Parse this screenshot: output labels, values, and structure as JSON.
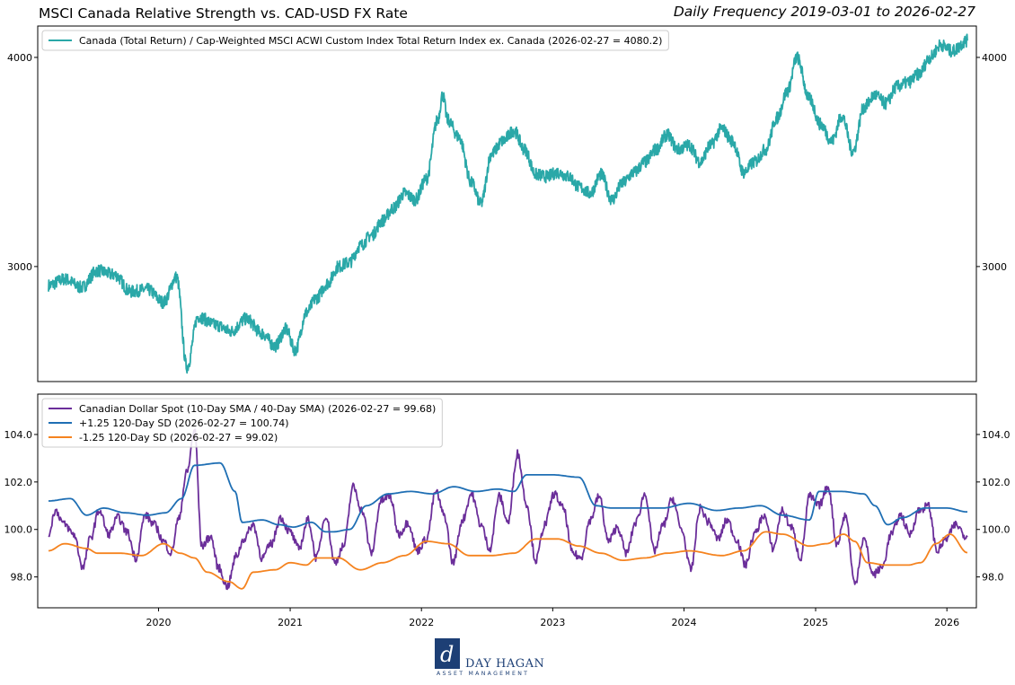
{
  "header": {
    "title": "MSCI Canada Relative Strength vs. CAD-USD FX Rate",
    "subtitle": "Daily Frequency 2019-03-01 to 2026-02-27"
  },
  "logo": {
    "text": "DAY HAGAN",
    "tagline": "ASSET MANAGEMENT",
    "color": "#1d3f75"
  },
  "chart_data": [
    {
      "type": "line",
      "title": "",
      "ylim": [
        2450,
        4150
      ],
      "yticks": [
        "3000",
        "4000"
      ],
      "y_tick_values": [
        3000,
        4000
      ],
      "grid": false,
      "legend_position": "top-left",
      "series": [
        {
          "name": "Canada (Total Return) / Cap-Weighted MSCI ACWI Custom Index Total Return Index ex. Canada (2026-02-27 = 4080.2)",
          "color": "#2aa8a8",
          "x": [
            "2019-03-01",
            "2019-04-15",
            "2019-06-01",
            "2019-07-15",
            "2019-09-01",
            "2019-10-15",
            "2019-12-01",
            "2020-01-15",
            "2020-02-20",
            "2020-03-20",
            "2020-04-20",
            "2020-06-10",
            "2020-07-20",
            "2020-09-01",
            "2020-10-15",
            "2020-11-20",
            "2020-12-20",
            "2021-01-15",
            "2021-02-15",
            "2021-03-15",
            "2021-04-15",
            "2021-05-15",
            "2021-06-15",
            "2021-07-15",
            "2021-08-15",
            "2021-09-15",
            "2021-10-15",
            "2021-11-15",
            "2021-12-15",
            "2022-01-15",
            "2022-02-15",
            "2022-03-01",
            "2022-03-15",
            "2022-04-15",
            "2022-05-20",
            "2022-06-15",
            "2022-07-15",
            "2022-08-15",
            "2022-09-15",
            "2022-10-15",
            "2022-11-15",
            "2022-12-15",
            "2023-01-15",
            "2023-02-15",
            "2023-03-15",
            "2023-04-15",
            "2023-05-15",
            "2023-06-15",
            "2023-07-15",
            "2023-08-15",
            "2023-09-15",
            "2023-10-15",
            "2023-11-15",
            "2023-12-15",
            "2024-01-15",
            "2024-02-15",
            "2024-03-15",
            "2024-04-15",
            "2024-05-15",
            "2024-06-15",
            "2024-07-15",
            "2024-08-15",
            "2024-09-15",
            "2024-10-15",
            "2024-11-10",
            "2024-12-15",
            "2025-01-15",
            "2025-02-15",
            "2025-03-15",
            "2025-04-15",
            "2025-05-15",
            "2025-06-15",
            "2025-07-15",
            "2025-08-15",
            "2025-09-15",
            "2025-10-15",
            "2025-11-15",
            "2025-12-15",
            "2026-01-15",
            "2026-02-27"
          ],
          "values": [
            2910,
            2940,
            2900,
            2980,
            2960,
            2880,
            2890,
            2830,
            2950,
            2520,
            2760,
            2720,
            2690,
            2750,
            2680,
            2620,
            2700,
            2600,
            2780,
            2850,
            2920,
            3000,
            3020,
            3100,
            3150,
            3220,
            3280,
            3350,
            3320,
            3420,
            3700,
            3820,
            3700,
            3620,
            3400,
            3300,
            3540,
            3600,
            3650,
            3560,
            3440,
            3430,
            3450,
            3430,
            3380,
            3350,
            3440,
            3320,
            3400,
            3450,
            3500,
            3560,
            3630,
            3560,
            3580,
            3500,
            3580,
            3660,
            3600,
            3450,
            3500,
            3560,
            3710,
            3840,
            4000,
            3800,
            3680,
            3600,
            3720,
            3550,
            3760,
            3820,
            3780,
            3860,
            3880,
            3920,
            4000,
            4060,
            4030,
            4080
          ]
        }
      ]
    },
    {
      "type": "line",
      "title": "",
      "ylim": [
        96.7,
        105.7
      ],
      "yticks": [
        "98.0",
        "100.0",
        "102.0",
        "104.0"
      ],
      "y_tick_values": [
        98,
        100,
        102,
        104
      ],
      "xticks": [
        "2020",
        "2021",
        "2022",
        "2023",
        "2024",
        "2025",
        "2026"
      ],
      "x_tick_values": [
        "2020-01-01",
        "2021-01-01",
        "2022-01-01",
        "2023-01-01",
        "2024-01-01",
        "2025-01-01",
        "2026-01-01"
      ],
      "grid": false,
      "legend_position": "top-left",
      "series": [
        {
          "name": "Canadian Dollar Spot (10-Day SMA / 40-Day SMA) (2026-02-27 = 99.68)",
          "color": "#6b2e9a",
          "x": [
            "2019-03-01",
            "2019-03-20",
            "2019-04-15",
            "2019-05-10",
            "2019-06-05",
            "2019-06-25",
            "2019-07-20",
            "2019-08-15",
            "2019-09-10",
            "2019-10-05",
            "2019-10-30",
            "2019-11-25",
            "2019-12-20",
            "2020-01-15",
            "2020-02-05",
            "2020-02-25",
            "2020-03-20",
            "2020-04-10",
            "2020-04-30",
            "2020-05-25",
            "2020-06-15",
            "2020-07-10",
            "2020-08-05",
            "2020-08-25",
            "2020-09-20",
            "2020-10-15",
            "2020-11-10",
            "2020-12-05",
            "2020-12-31",
            "2021-01-25",
            "2021-02-20",
            "2021-03-15",
            "2021-04-10",
            "2021-05-05",
            "2021-05-30",
            "2021-06-25",
            "2021-07-20",
            "2021-08-15",
            "2021-09-10",
            "2021-10-05",
            "2021-10-30",
            "2021-11-25",
            "2021-12-20",
            "2022-01-15",
            "2022-02-10",
            "2022-03-05",
            "2022-03-30",
            "2022-04-25",
            "2022-05-20",
            "2022-06-15",
            "2022-07-10",
            "2022-08-05",
            "2022-08-30",
            "2022-09-25",
            "2022-10-20",
            "2022-11-15",
            "2022-12-10",
            "2023-01-05",
            "2023-01-30",
            "2023-02-25",
            "2023-03-20",
            "2023-04-15",
            "2023-05-10",
            "2023-06-05",
            "2023-06-30",
            "2023-07-25",
            "2023-08-20",
            "2023-09-15",
            "2023-10-10",
            "2023-11-05",
            "2023-11-30",
            "2023-12-25",
            "2024-01-20",
            "2024-02-15",
            "2024-03-10",
            "2024-04-05",
            "2024-04-30",
            "2024-05-25",
            "2024-06-20",
            "2024-07-15",
            "2024-08-10",
            "2024-09-05",
            "2024-09-30",
            "2024-10-25",
            "2024-11-20",
            "2024-12-15",
            "2025-01-10",
            "2025-02-05",
            "2025-03-01",
            "2025-03-25",
            "2025-04-20",
            "2025-05-15",
            "2025-06-10",
            "2025-07-05",
            "2025-07-30",
            "2025-08-25",
            "2025-09-20",
            "2025-10-15",
            "2025-11-10",
            "2025-12-05",
            "2025-12-30",
            "2026-01-25",
            "2026-02-27"
          ],
          "values": [
            99.8,
            100.8,
            100.2,
            99.8,
            98.4,
            99.6,
            100.8,
            99.8,
            100.5,
            99.9,
            98.8,
            100.6,
            100.2,
            99.5,
            99.0,
            100.4,
            102.4,
            104.2,
            99.3,
            99.7,
            98.4,
            97.6,
            98.9,
            99.6,
            100.2,
            98.8,
            99.4,
            100.5,
            99.9,
            99.2,
            100.4,
            98.8,
            100.6,
            98.6,
            99.3,
            101.8,
            100.8,
            99.0,
            101.2,
            101.4,
            99.8,
            100.3,
            99.1,
            99.6,
            101.6,
            100.6,
            98.6,
            100.4,
            101.5,
            100.2,
            99.2,
            101.4,
            100.3,
            103.2,
            101.1,
            98.7,
            100.2,
            101.5,
            100.9,
            99.0,
            98.8,
            100.4,
            101.4,
            99.5,
            100.1,
            99.0,
            100.3,
            101.5,
            99.1,
            100.2,
            101.3,
            100.0,
            98.3,
            100.9,
            100.3,
            99.6,
            100.4,
            99.6,
            98.5,
            99.8,
            100.6,
            99.2,
            100.8,
            100.1,
            98.8,
            101.4,
            101.0,
            101.8,
            99.4,
            100.6,
            97.7,
            99.6,
            98.1,
            98.4,
            99.8,
            100.6,
            99.8,
            100.8,
            101.0,
            99.1,
            99.6,
            100.2,
            99.68
          ]
        },
        {
          "name": "+1.25 120-Day SD (2026-02-27 = 100.74)",
          "color": "#1f6fb4",
          "x": [
            "2019-03-01",
            "2019-05-01",
            "2019-06-15",
            "2019-08-01",
            "2019-10-01",
            "2019-12-01",
            "2020-01-20",
            "2020-03-05",
            "2020-04-10",
            "2020-06-20",
            "2020-08-01",
            "2020-08-20",
            "2020-10-15",
            "2020-12-01",
            "2021-01-10",
            "2021-03-01",
            "2021-04-10",
            "2021-05-01",
            "2021-06-15",
            "2021-08-01",
            "2021-10-01",
            "2021-12-01",
            "2022-02-01",
            "2022-04-01",
            "2022-06-01",
            "2022-08-01",
            "2022-09-15",
            "2022-10-20",
            "2023-01-01",
            "2023-03-15",
            "2023-05-01",
            "2023-06-15",
            "2023-09-01",
            "2023-11-01",
            "2024-01-15",
            "2024-04-01",
            "2024-06-01",
            "2024-08-01",
            "2024-10-01",
            "2024-12-15",
            "2025-01-10",
            "2025-03-15",
            "2025-05-15",
            "2025-06-15",
            "2025-07-20",
            "2025-09-01",
            "2025-11-01",
            "2026-01-01",
            "2026-02-27"
          ],
          "values": [
            101.2,
            101.3,
            100.6,
            100.9,
            100.7,
            100.6,
            100.7,
            101.3,
            102.7,
            102.8,
            101.6,
            100.3,
            100.4,
            100.2,
            100.1,
            100.3,
            99.9,
            99.9,
            100.0,
            101.0,
            101.5,
            101.6,
            101.5,
            101.8,
            101.6,
            101.7,
            101.6,
            102.3,
            102.3,
            102.2,
            101.0,
            100.9,
            100.9,
            100.9,
            101.1,
            100.8,
            100.9,
            101.0,
            100.6,
            100.4,
            101.6,
            101.6,
            101.5,
            101.0,
            100.2,
            100.5,
            100.9,
            100.9,
            100.74
          ]
        },
        {
          "name": "-1.25 120-Day SD (2026-02-27 = 99.02)",
          "color": "#f5831f",
          "x": [
            "2019-03-01",
            "2019-04-15",
            "2019-06-15",
            "2019-07-15",
            "2019-09-15",
            "2019-11-15",
            "2020-01-15",
            "2020-03-01",
            "2020-04-10",
            "2020-05-15",
            "2020-07-15",
            "2020-08-20",
            "2020-09-20",
            "2020-11-20",
            "2021-01-01",
            "2021-02-15",
            "2021-03-15",
            "2021-05-15",
            "2021-07-15",
            "2021-09-15",
            "2021-11-15",
            "2022-01-15",
            "2022-03-15",
            "2022-05-15",
            "2022-07-15",
            "2022-09-15",
            "2022-11-15",
            "2023-01-15",
            "2023-03-15",
            "2023-05-15",
            "2023-07-15",
            "2023-09-15",
            "2023-11-15",
            "2024-01-15",
            "2024-04-15",
            "2024-06-15",
            "2024-08-15",
            "2024-10-01",
            "2024-12-15",
            "2025-02-01",
            "2025-03-20",
            "2025-04-20",
            "2025-05-25",
            "2025-07-15",
            "2025-09-15",
            "2025-10-20",
            "2025-12-01",
            "2026-01-10",
            "2026-02-27"
          ],
          "values": [
            99.1,
            99.4,
            99.2,
            99.0,
            99.0,
            98.9,
            99.4,
            99.0,
            98.8,
            98.2,
            97.8,
            97.5,
            98.2,
            98.3,
            98.6,
            98.5,
            98.8,
            98.8,
            98.3,
            98.6,
            98.9,
            99.5,
            99.4,
            98.9,
            98.9,
            99.0,
            99.6,
            99.6,
            99.3,
            99.0,
            98.7,
            98.8,
            99.0,
            99.1,
            98.9,
            99.1,
            99.9,
            99.8,
            99.3,
            99.4,
            99.8,
            99.5,
            98.6,
            98.5,
            98.5,
            98.6,
            99.4,
            99.8,
            99.02
          ]
        }
      ]
    }
  ]
}
